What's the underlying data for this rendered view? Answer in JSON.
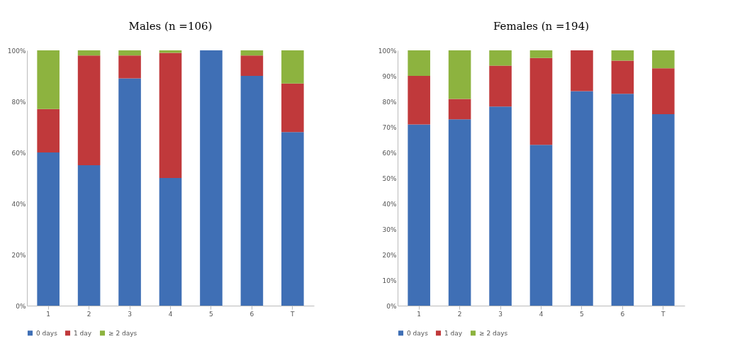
{
  "chart_data": [
    {
      "type": "bar",
      "title": "Males (n =106)",
      "stacked": true,
      "legend": "bottom",
      "categories": [
        "1",
        "2",
        "3",
        "4",
        "5",
        "6",
        "T"
      ],
      "ylim": [
        0,
        100
      ],
      "yticks": [
        {
          "value": 0,
          "label": "0%"
        },
        {
          "value": 20,
          "label": "20%"
        },
        {
          "value": 40,
          "label": "40%"
        },
        {
          "value": 60,
          "label": "60%"
        },
        {
          "value": 80,
          "label": "80%"
        },
        {
          "value": 100,
          "label": "100%"
        }
      ],
      "series": [
        {
          "name": "0 days",
          "color": "#3f6fb5",
          "values": [
            60,
            55,
            89,
            50,
            100,
            90,
            68
          ]
        },
        {
          "name": "1 day",
          "color": "#c0393b",
          "values": [
            17,
            43,
            9,
            49,
            0,
            8,
            19
          ]
        },
        {
          "name": "≥ 2 days",
          "color": "#8db33f",
          "values": [
            23,
            2,
            2,
            1,
            0,
            2,
            13
          ]
        }
      ]
    },
    {
      "type": "bar",
      "title": "Females (n =194)",
      "stacked": true,
      "legend": "bottom",
      "categories": [
        "1",
        "2",
        "3",
        "4",
        "5",
        "6",
        "T"
      ],
      "ylim": [
        0,
        100
      ],
      "yticks": [
        {
          "value": 0,
          "label": "0%"
        },
        {
          "value": 10,
          "label": "10%"
        },
        {
          "value": 20,
          "label": "20%"
        },
        {
          "value": 30,
          "label": "30%"
        },
        {
          "value": 40,
          "label": "40%"
        },
        {
          "value": 50,
          "label": "50%"
        },
        {
          "value": 60,
          "label": "60%"
        },
        {
          "value": 70,
          "label": "70%"
        },
        {
          "value": 80,
          "label": "80%"
        },
        {
          "value": 90,
          "label": "90%"
        },
        {
          "value": 100,
          "label": "100%"
        }
      ],
      "series": [
        {
          "name": "0 days",
          "color": "#3f6fb5",
          "values": [
            71,
            73,
            78,
            63,
            84,
            83,
            75
          ]
        },
        {
          "name": "1 day",
          "color": "#c0393b",
          "values": [
            19,
            8,
            16,
            34,
            16,
            13,
            18
          ]
        },
        {
          "name": "≥ 2 days",
          "color": "#8db33f",
          "values": [
            10,
            19,
            6,
            3,
            0,
            4,
            7
          ]
        }
      ]
    }
  ]
}
